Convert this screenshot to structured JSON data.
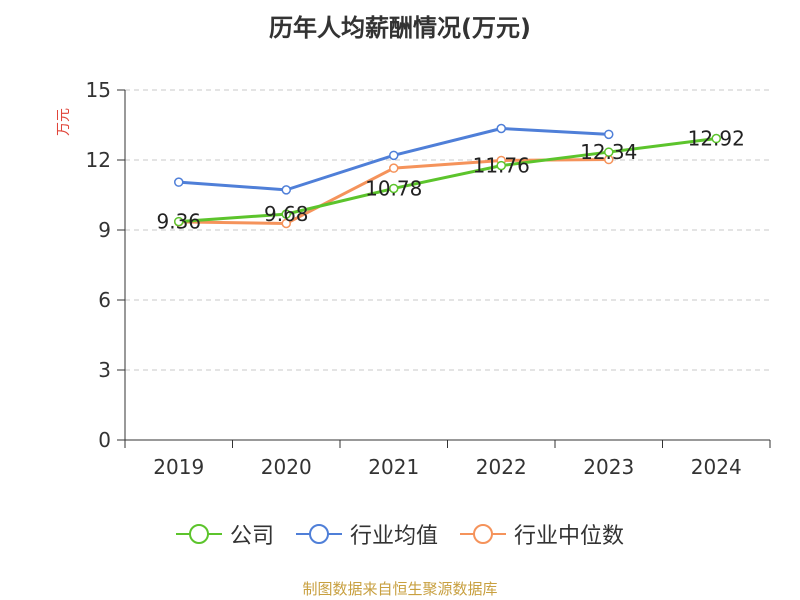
{
  "source_text": "制图数据来自恒生聚源数据库",
  "colors": {
    "company": "#5cc42c",
    "industry_avg": "#4f7fd8",
    "industry_median": "#f5935b",
    "grid": "#c8c8c8",
    "axis": "#333333",
    "source": "#c8a040",
    "ylabel": "#e0453a"
  },
  "chart_data": {
    "type": "line",
    "title": "历年人均薪酬情况(万元)",
    "xlabel": "",
    "ylabel": "万元",
    "categories": [
      "2019",
      "2020",
      "2021",
      "2022",
      "2023",
      "2024"
    ],
    "ylim": [
      0,
      15
    ],
    "yticks": [
      0,
      3,
      6,
      9,
      12,
      15
    ],
    "grid": true,
    "legend_position": "bottom",
    "series": [
      {
        "name": "公司",
        "key": "company",
        "values": [
          9.36,
          9.68,
          10.78,
          11.76,
          12.34,
          12.92
        ],
        "labels": [
          "9.36",
          "9.68",
          "10.78",
          "11.76",
          "12.34",
          "12.92"
        ]
      },
      {
        "name": "行业均值",
        "key": "industry_avg",
        "values": [
          11.05,
          10.72,
          12.2,
          13.35,
          13.1,
          null
        ]
      },
      {
        "name": "行业中位数",
        "key": "industry_median",
        "values": [
          9.35,
          9.28,
          11.65,
          11.98,
          12.02,
          null
        ]
      }
    ]
  }
}
